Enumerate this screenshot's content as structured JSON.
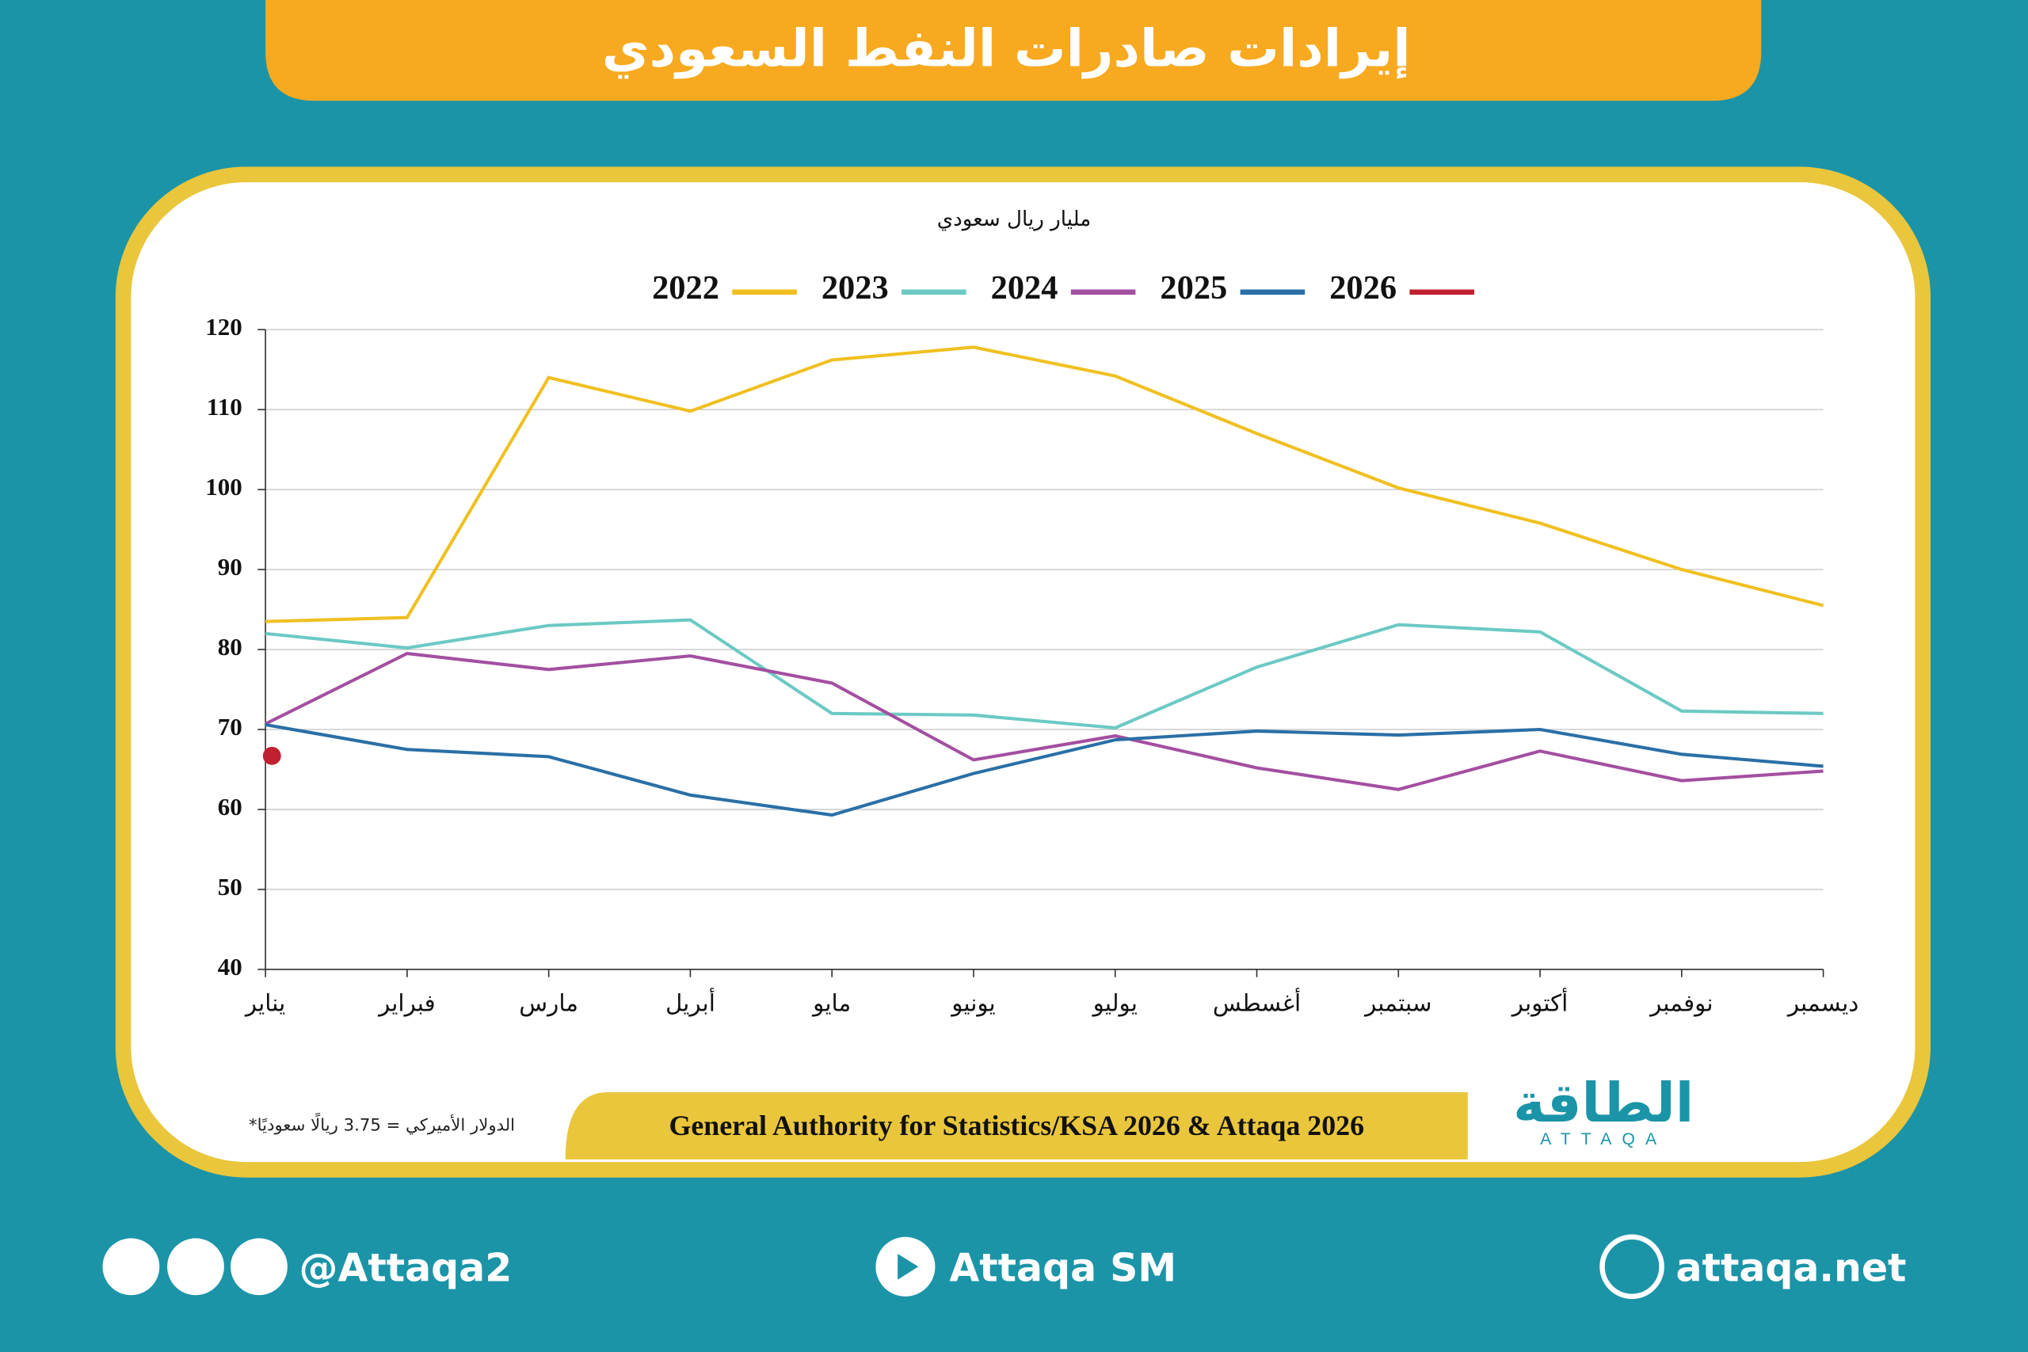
{
  "header": {
    "title": "إيرادات صادرات النفط السعودي"
  },
  "chart_data": {
    "type": "line",
    "y_axis_label": "مليار ريال سعودي",
    "categories": [
      "يناير",
      "فبراير",
      "مارس",
      "أبريل",
      "مايو",
      "يونيو",
      "يوليو",
      "أغسطس",
      "سبتمبر",
      "أكتوبر",
      "نوفمبر",
      "ديسمبر"
    ],
    "series": [
      {
        "name": "2022",
        "color": "#f0c020",
        "values": [
          83.5,
          84,
          114,
          109.8,
          116.2,
          117.8,
          114.2,
          107,
          100.2,
          95.8,
          90,
          85.5
        ]
      },
      {
        "name": "2023",
        "color": "#6cc9c4",
        "values": [
          82,
          80.2,
          83,
          83.7,
          72,
          71.8,
          70.2,
          77.8,
          83.1,
          82.2,
          72.3,
          72
        ]
      },
      {
        "name": "2024",
        "color": "#a34fa0",
        "values": [
          70.7,
          79.5,
          77.5,
          79.2,
          75.8,
          66.2,
          69.2,
          65.2,
          62.5,
          67.3,
          63.6,
          64.8
        ]
      },
      {
        "name": "2025",
        "color": "#2a6fa6",
        "values": [
          70.6,
          67.5,
          66.6,
          61.8,
          59.3,
          64.5,
          68.7,
          69.8,
          69.3,
          70,
          66.9,
          65.4
        ]
      },
      {
        "name": "2026",
        "color": "#c0202f",
        "values": [
          66.7,
          null,
          null,
          null,
          null,
          null,
          null,
          null,
          null,
          null,
          null,
          null
        ]
      }
    ],
    "ylim": [
      40,
      120
    ],
    "yticks": [
      40,
      50,
      60,
      70,
      80,
      90,
      100,
      110,
      120
    ],
    "grid": true
  },
  "notes": {
    "footnote": "*الدولار الأميركي = 3.75 ريالًا سعوديًا",
    "source": "General Authority for Statistics/KSA 2026 & Attaqa 2026"
  },
  "logo": {
    "arabic": "الطاقة",
    "latin": "ATTAQA"
  },
  "footer": {
    "social": "@Attaqa2",
    "youtube": "Attaqa SM",
    "website": "attaqa.net"
  }
}
